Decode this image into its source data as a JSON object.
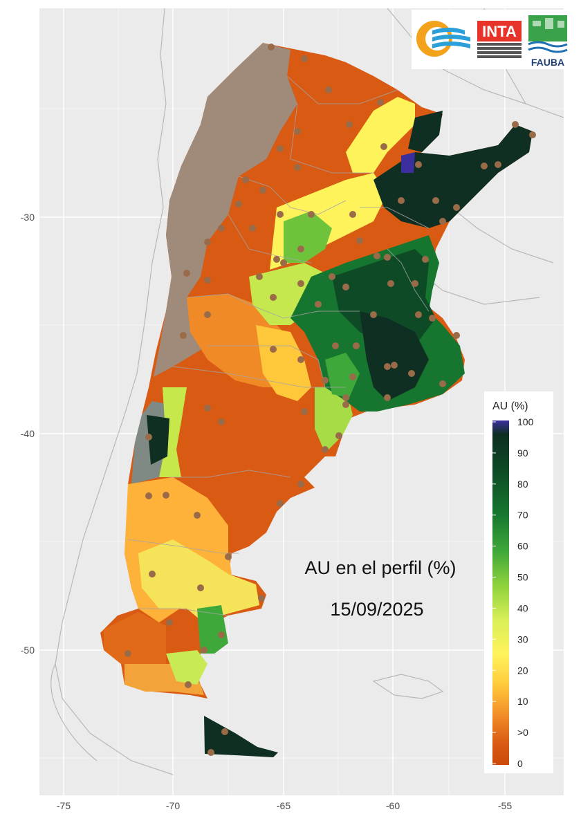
{
  "title": {
    "line1": "AU en el perfil (%)",
    "line2": "15/09/2025"
  },
  "axes": {
    "x_ticks": [
      "-75",
      "-70",
      "-65",
      "-60",
      "-55"
    ],
    "y_ticks": [
      "-30",
      "-40",
      "-50"
    ]
  },
  "legend": {
    "title": "AU (%)",
    "labels": [
      "100",
      "90",
      "80",
      "70",
      "60",
      "50",
      "40",
      "30",
      "20",
      "10",
      ">0",
      "0"
    ],
    "colors": {
      "100": "#3b2f9e",
      "90": "#0e2f22",
      "80": "#0d4a25",
      "70": "#16762f",
      "60": "#3fa83a",
      "50": "#8fd23d",
      "40": "#d9ef58",
      "30": "#fff35c",
      "20": "#ffc83a",
      "10": "#f08a26",
      ">0": "#d85a13",
      "0": "#cc4a0a"
    }
  },
  "logos": {
    "inta": "INTA",
    "fauba": "FAUBA"
  },
  "colors": {
    "panel_bg": "#ebebeb",
    "grid": "#ffffff",
    "dry_zone": "#a08a7a",
    "station": "#9a6b48"
  }
}
